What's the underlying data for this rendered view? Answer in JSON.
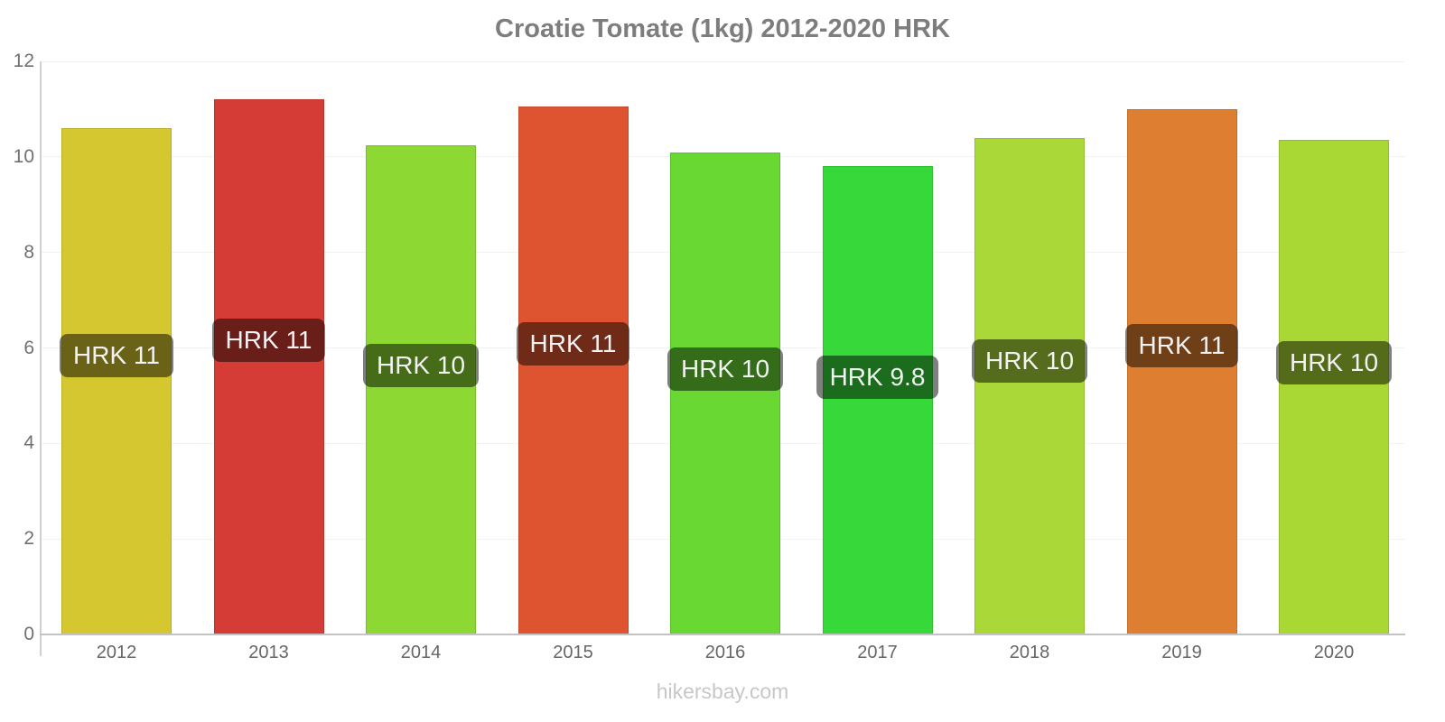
{
  "title": "Croatie Tomate (1kg) 2012-2020 HRK",
  "footer": "hikersbay.com",
  "chart_data": {
    "type": "bar",
    "title": "Croatie Tomate (1kg) 2012-2020 HRK",
    "xlabel": "",
    "ylabel": "",
    "ylim": [
      0,
      12
    ],
    "yticks": [
      0,
      2,
      4,
      6,
      8,
      10,
      12
    ],
    "grid": "faint-horizontal",
    "legend": "none",
    "currency": "HRK",
    "categories": [
      "2012",
      "2013",
      "2014",
      "2015",
      "2016",
      "2017",
      "2018",
      "2019",
      "2020"
    ],
    "values": [
      10.6,
      11.2,
      10.25,
      11.05,
      10.1,
      9.8,
      10.4,
      11.0,
      10.35
    ],
    "bar_labels": [
      "HRK 11",
      "HRK 11",
      "HRK 10",
      "HRK 11",
      "HRK 10",
      "HRK 9.8",
      "HRK 10",
      "HRK 11",
      "HRK 10"
    ],
    "bar_colors": [
      "#d4c72f",
      "#d53c35",
      "#8dd833",
      "#de5431",
      "#69d833",
      "#36d83a",
      "#aad838",
      "#de7e31",
      "#a9d733"
    ],
    "label_pill_bg": "rgba(0,0,0,0.5)",
    "label_text_color": "#f2f2f2",
    "axis_color": "#c3c3c3",
    "tick_label_color": "#707070"
  }
}
